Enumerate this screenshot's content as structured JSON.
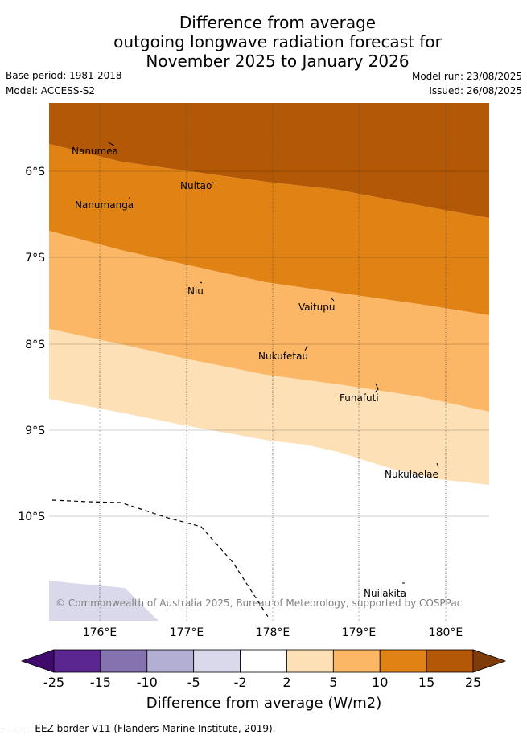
{
  "header": {
    "title_lines": [
      "Difference from average",
      "outgoing longwave radiation forecast for",
      "November 2025 to January 2026"
    ],
    "base_period": "Base period: 1981-2018",
    "model": "Model: ACCESS-S2",
    "model_run": "Model run: 23/08/2025",
    "issued": "Issued: 26/08/2025"
  },
  "map": {
    "lat_labels": [
      "6°S",
      "7°S",
      "8°S",
      "9°S",
      "10°S"
    ],
    "lon_labels": [
      "176°E",
      "177°E",
      "178°E",
      "179°E",
      "180°E"
    ],
    "places": [
      "Nanumea",
      "Nuitao",
      "Nanumanga",
      "Niu",
      "Vaitupu",
      "Nukufetau",
      "Funafuti",
      "Nukulaelae",
      "Nuilakita"
    ],
    "copyright": "© Commonwealth of Australia 2025, Bureau of Meteorology, supported by COSPPac"
  },
  "colorbar": {
    "ticks": [
      "-25",
      "-15",
      "-10",
      "-5",
      "-2",
      "2",
      "5",
      "10",
      "15",
      "25"
    ],
    "colors": [
      "#3f0a6b",
      "#5b2690",
      "#8473ae",
      "#b3aed4",
      "#d9d9eb",
      "#ffffff",
      "#fde0b6",
      "#fbb766",
      "#e18314",
      "#b35806",
      "#7f3b08"
    ],
    "label": "Difference from average (W/m2)"
  },
  "footnote": "-- -- -- EEZ border V11 (Flanders Marine Institute, 2019)."
}
